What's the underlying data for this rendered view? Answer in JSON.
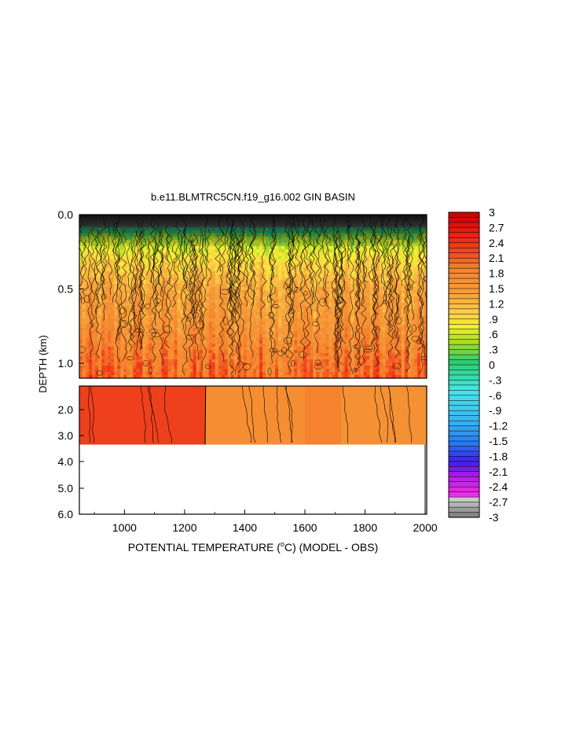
{
  "chart_data": {
    "type": "heatmap",
    "title": "b.e11.BLMTRC5CN.f19_g16.002 GIN BASIN",
    "xlabel": "POTENTIAL TEMPERATURE (",
    "xlabel_unit_sup": "o",
    "xlabel_unit": "C) (MODEL - OBS)",
    "ylabel": "DEPTH (km)",
    "xlim": [
      850,
      2005
    ],
    "x_ticks": [
      "1000",
      "1200",
      "1400",
      "1600",
      "1800",
      "2000"
    ],
    "x_tick_values": [
      1000,
      1200,
      1400,
      1600,
      1800,
      2000
    ],
    "upper_panel": {
      "ylim": [
        0.0,
        1.1
      ],
      "y_ticks": [
        "0.0",
        "0.5",
        "1.0"
      ],
      "y_tick_values": [
        0.0,
        0.5,
        1.0
      ]
    },
    "lower_panel": {
      "ylim": [
        1.1,
        6.0
      ],
      "data_bottom_depth": 3.35,
      "y_ticks": [
        "2.0",
        "3.0",
        "4.0",
        "5.0",
        "6.0"
      ],
      "y_tick_values": [
        2.0,
        3.0,
        4.0,
        5.0,
        6.0
      ]
    },
    "upper_depth_profile": {
      "depth": [
        0.0,
        0.05,
        0.15,
        0.3,
        0.5,
        0.75,
        1.0,
        1.1
      ],
      "value": [
        -3.0,
        -0.5,
        0.4,
        0.9,
        1.35,
        1.6,
        1.95,
        2.05
      ]
    },
    "lower_segments": [
      {
        "x_start": 850,
        "x_end": 1270,
        "value": 2.3
      },
      {
        "x_start": 1270,
        "x_end": 1600,
        "value": 1.7
      },
      {
        "x_start": 1600,
        "x_end": 1720,
        "value": 1.9
      },
      {
        "x_start": 1720,
        "x_end": 2005,
        "value": 1.65
      }
    ],
    "colorbar": {
      "min": -3.0,
      "max": 3.0,
      "step": 0.1,
      "labels": [
        "3",
        "2.7",
        "2.4",
        "2.1",
        "1.8",
        "1.5",
        "1.2",
        ".9",
        ".6",
        ".3",
        "0",
        "-.3",
        "-.6",
        "-.9",
        "-1.2",
        "-1.5",
        "-1.8",
        "-2.1",
        "-2.4",
        "-2.7",
        "-3"
      ],
      "label_values": [
        3.0,
        2.7,
        2.4,
        2.1,
        1.8,
        1.5,
        1.2,
        0.9,
        0.6,
        0.3,
        0.0,
        -0.3,
        -0.6,
        -0.9,
        -1.2,
        -1.5,
        -1.8,
        -2.1,
        -2.4,
        -2.7,
        -3.0
      ],
      "color_stops": [
        {
          "value": -3.0,
          "color": "#7a7a7a"
        },
        {
          "value": -2.65,
          "color": "#c8c8c8"
        },
        {
          "value": -2.55,
          "color": "#e632e6"
        },
        {
          "value": -2.2,
          "color": "#b01ee0"
        },
        {
          "value": -1.9,
          "color": "#3c1ef0"
        },
        {
          "value": -1.55,
          "color": "#2878f0"
        },
        {
          "value": -1.1,
          "color": "#3cb4f0"
        },
        {
          "value": -0.5,
          "color": "#46e6e6"
        },
        {
          "value": 0.05,
          "color": "#2ecc70"
        },
        {
          "value": 0.45,
          "color": "#a8dc28"
        },
        {
          "value": 0.75,
          "color": "#f0f032"
        },
        {
          "value": 1.0,
          "color": "#ffd246"
        },
        {
          "value": 1.4,
          "color": "#f5a03c"
        },
        {
          "value": 1.9,
          "color": "#f5822d"
        },
        {
          "value": 2.2,
          "color": "#f04b1e"
        },
        {
          "value": 2.6,
          "color": "#e61e14"
        },
        {
          "value": 3.0,
          "color": "#c80000"
        }
      ]
    },
    "grid": false
  }
}
